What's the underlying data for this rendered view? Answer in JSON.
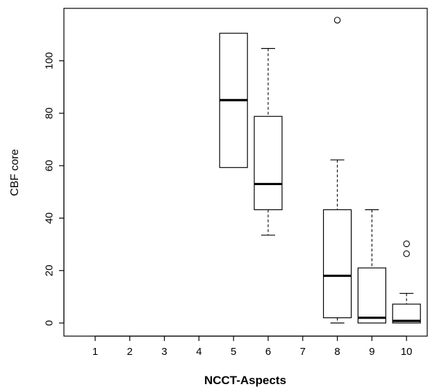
{
  "chart_data": {
    "type": "boxplot",
    "xlabel": "NCCT-Aspects",
    "ylabel": "CBF core",
    "categories": [
      "1",
      "2",
      "3",
      "4",
      "5",
      "6",
      "7",
      "8",
      "9",
      "10"
    ],
    "yticks": [
      0,
      20,
      40,
      60,
      80,
      100
    ],
    "ylim": [
      -5,
      120
    ],
    "grid": false,
    "boxes": [
      {
        "category": "5",
        "whisker_low": 59.3,
        "q1": 59.3,
        "median": 85.0,
        "q3": 110.5,
        "whisker_high": 110.5,
        "outliers": []
      },
      {
        "category": "6",
        "whisker_low": 33.5,
        "q1": 43.2,
        "median": 53.0,
        "q3": 78.8,
        "whisker_high": 104.7,
        "outliers": []
      },
      {
        "category": "8",
        "whisker_low": 0.0,
        "q1": 2.0,
        "median": 18.0,
        "q3": 43.2,
        "whisker_high": 62.2,
        "outliers": [
          115.5
        ]
      },
      {
        "category": "9",
        "whisker_low": 0.0,
        "q1": 0.0,
        "median": 2.0,
        "q3": 21.0,
        "whisker_high": 43.2,
        "outliers": []
      },
      {
        "category": "10",
        "whisker_low": 0.0,
        "q1": 0.0,
        "median": 0.8,
        "q3": 7.2,
        "whisker_high": 11.3,
        "outliers": [
          26.4,
          30.2
        ]
      }
    ]
  }
}
